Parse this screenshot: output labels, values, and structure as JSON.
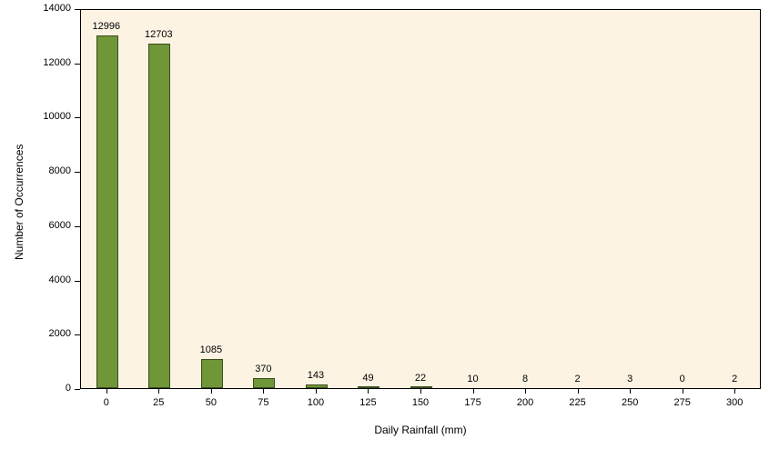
{
  "chart_data": {
    "type": "bar",
    "title": "",
    "xlabel": "Daily Rainfall (mm)",
    "ylabel": "Number of Occurrences",
    "categories": [
      "0",
      "25",
      "50",
      "75",
      "100",
      "125",
      "150",
      "175",
      "200",
      "225",
      "250",
      "275",
      "300"
    ],
    "values": [
      12996,
      12703,
      1085,
      370,
      143,
      49,
      22,
      10,
      8,
      2,
      3,
      0,
      2
    ],
    "ylim": [
      0,
      14000
    ],
    "ytick_step": 2000,
    "ytick_labels": [
      "0",
      "2000",
      "4000",
      "6000",
      "8000",
      "10000",
      "12000",
      "14000"
    ],
    "grid": false,
    "legend": "none",
    "colors": {
      "bar_fill": "#6f9637",
      "bar_border": "#3a4d1e",
      "plot_bg": "#fdf3e3",
      "axis": "#000000"
    }
  }
}
